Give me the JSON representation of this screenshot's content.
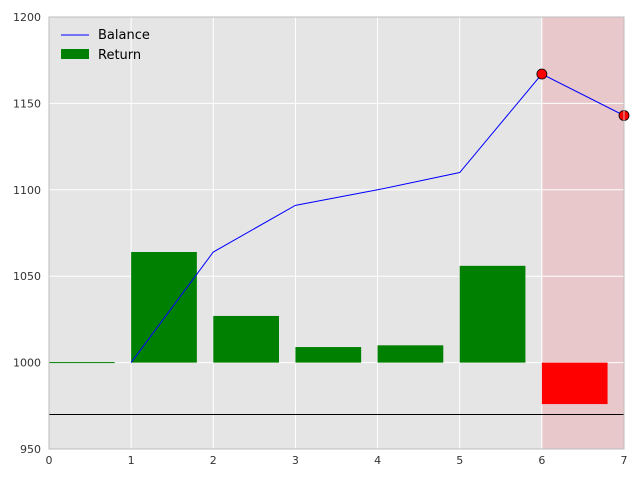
{
  "chart_data": {
    "type": "bar+line",
    "title": "",
    "xlabel": "",
    "ylabel": "",
    "xlim": [
      0,
      7
    ],
    "ylim": [
      950,
      1200
    ],
    "xticks": [
      0,
      1,
      2,
      3,
      4,
      5,
      6,
      7
    ],
    "yticks": [
      950,
      1000,
      1050,
      1100,
      1150,
      1200
    ],
    "grid": true,
    "legend_placement": "top-left",
    "baseline": 1000,
    "reference_line": 970,
    "highlight_region": {
      "x_from": 6,
      "x_to": 7,
      "color": "#e8c8ca"
    },
    "background_color": "#e5e5e5",
    "series": [
      {
        "name": "Balance",
        "kind": "line",
        "color": "#0000ff",
        "x": [
          1,
          2,
          3,
          4,
          5,
          6,
          7
        ],
        "y": [
          1000,
          1064,
          1091,
          1100,
          1110,
          1167,
          1143
        ]
      },
      {
        "name": "Return",
        "kind": "bar",
        "color": "#008000",
        "negative_color": "#ff0000",
        "x": [
          0,
          1,
          2,
          3,
          4,
          5,
          6
        ],
        "width": 0.8,
        "values": [
          0,
          64,
          27,
          9,
          10,
          56,
          -24
        ]
      }
    ],
    "markers": {
      "color": "#ff0000",
      "x": [
        6,
        7
      ],
      "y": [
        1167,
        1143
      ]
    }
  }
}
